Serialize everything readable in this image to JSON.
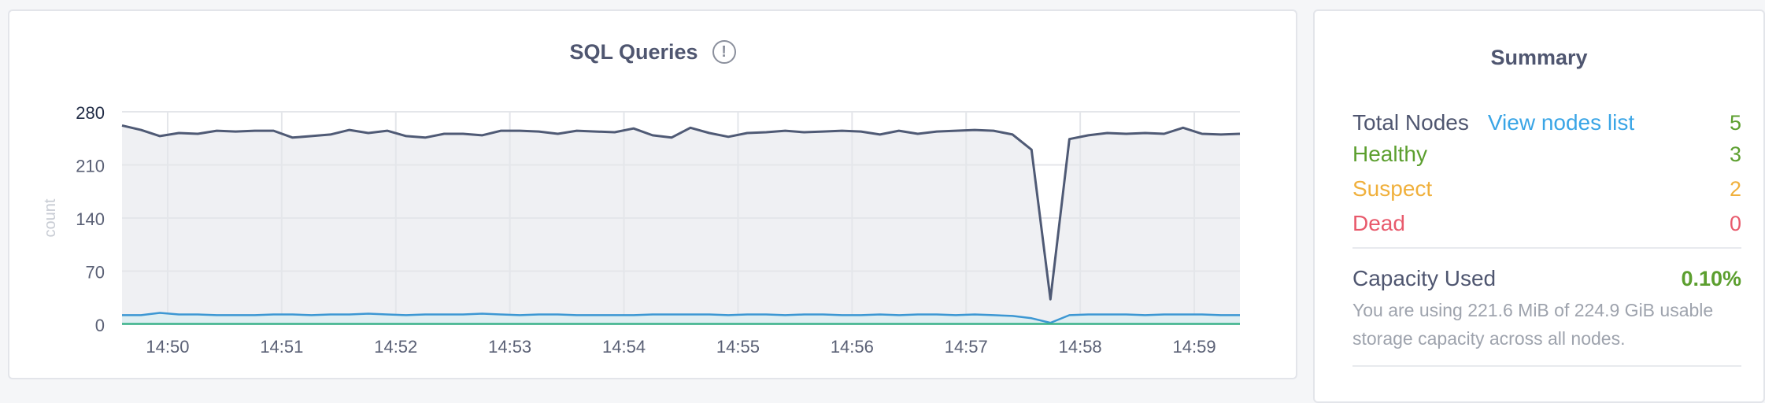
{
  "chart": {
    "title": "SQL Queries",
    "info_icon": "exclamation-circle-icon",
    "colors": {
      "series1": "#4f5a75",
      "series1_fill": "#eff0f3",
      "series2": "#3c97d3",
      "series3": "#3bb38b",
      "grid": "#e4e6ea",
      "tick": "#5a6075"
    }
  },
  "chart_data": {
    "type": "line",
    "title": "SQL Queries",
    "ylabel": "count",
    "xlabel": "",
    "ylim": [
      0,
      280
    ],
    "yticks": [
      0,
      70,
      140,
      210,
      280
    ],
    "xtick_labels": [
      "14:50",
      "14:51",
      "14:52",
      "14:53",
      "14:54",
      "14:55",
      "14:56",
      "14:57",
      "14:58",
      "14:59"
    ],
    "x_start_minutes": -0.4,
    "x_end_minutes": 9.4,
    "grid": true,
    "series": [
      {
        "values": [
          262,
          256,
          248,
          252,
          251,
          255,
          254,
          255,
          255,
          246,
          248,
          250,
          256,
          252,
          255,
          248,
          246,
          251,
          251,
          249,
          255,
          255,
          254,
          251,
          255,
          254,
          253,
          258,
          249,
          246,
          259,
          252,
          247,
          252,
          253,
          255,
          253,
          254,
          255,
          254,
          250,
          255,
          251,
          254,
          255,
          256,
          255,
          250,
          230,
          33,
          244,
          249,
          252,
          251,
          252,
          251,
          259,
          251,
          250,
          251
        ]
      },
      {
        "values": [
          12,
          12,
          15,
          13,
          13,
          12,
          12,
          12,
          13,
          13,
          12,
          13,
          13,
          14,
          13,
          12,
          13,
          13,
          13,
          14,
          13,
          12,
          13,
          13,
          12,
          12,
          12,
          12,
          13,
          13,
          13,
          13,
          12,
          13,
          13,
          12,
          13,
          13,
          12,
          12,
          13,
          12,
          13,
          13,
          12,
          13,
          12,
          11,
          8,
          2,
          12,
          13,
          13,
          13,
          12,
          13,
          13,
          13,
          12,
          12
        ]
      },
      {
        "values": [
          0.5,
          0.5,
          0.5,
          0.5,
          0.5,
          0.5,
          0.5,
          0.5,
          0.5,
          0.5,
          0.5,
          0.5,
          0.5,
          0.5,
          0.5,
          0.5,
          0.5,
          0.5,
          0.5,
          0.5,
          0.5,
          0.5,
          0.5,
          0.5,
          0.5,
          0.5,
          0.5,
          0.5,
          0.5,
          0.5,
          0.5,
          0.5,
          0.5,
          0.5,
          0.5,
          0.5,
          0.5,
          0.5,
          0.5,
          0.5,
          0.5,
          0.5,
          0.5,
          0.5,
          0.5,
          0.5,
          0.5,
          0.5,
          0.5,
          0.5,
          0.5,
          0.5,
          0.5,
          0.5,
          0.5,
          0.5,
          0.5,
          0.5,
          0.5,
          0.5
        ]
      }
    ]
  },
  "summary": {
    "title": "Summary",
    "total_nodes_label": "Total Nodes",
    "view_nodes_link": "View nodes list",
    "total_nodes_value": "5",
    "healthy_label": "Healthy",
    "healthy_value": "3",
    "suspect_label": "Suspect",
    "suspect_value": "2",
    "dead_label": "Dead",
    "dead_value": "0",
    "capacity_label": "Capacity Used",
    "capacity_value": "0.10%",
    "capacity_description": "You are using 221.6 MiB of 224.9 GiB usable storage capacity across all nodes.",
    "colors": {
      "label": "#4f5670",
      "healthy": "#5c9f2f",
      "suspect": "#f0b03c",
      "dead": "#e85a6c",
      "link": "#3aa5e6",
      "capacity_value": "#5c9f2f"
    }
  }
}
